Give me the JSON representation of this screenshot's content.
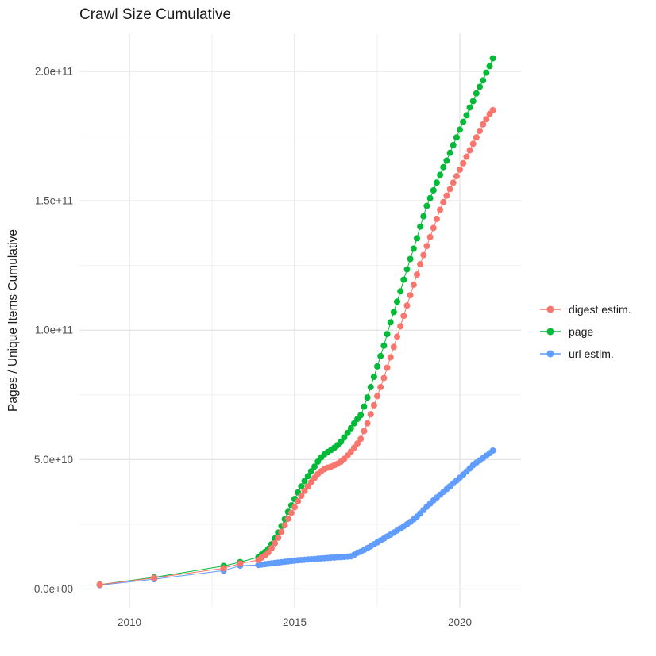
{
  "chart_data": {
    "type": "scatter",
    "title": "Crawl Size Cumulative",
    "xlabel": "",
    "ylabel": "Pages / Unique Items Cumulative",
    "values_unit": "1e9 (billions of pages / unique items)",
    "grid": "on",
    "legend_position": "right",
    "xlim": [
      2008.485,
      2021.85
    ],
    "ylim_e9": [
      -7.2,
      214.7
    ],
    "x_ticks": {
      "values": [
        2010,
        2015,
        2020
      ],
      "labels": [
        "2010",
        "2015",
        "2020"
      ],
      "minor": [
        2012.5,
        2017.5
      ]
    },
    "y_ticks": {
      "values_e9": [
        0,
        50,
        100,
        150,
        200
      ],
      "labels": [
        "0.0e+00",
        "5.0e+10",
        "1.0e+11",
        "1.5e+11",
        "2.0e+11"
      ],
      "minor_e9": [
        25,
        75,
        125,
        175
      ]
    },
    "x": [
      2009.1,
      2010.75,
      2012.85,
      2013.35,
      2013.9,
      2014.0,
      2014.1,
      2014.2,
      2014.3,
      2014.4,
      2014.5,
      2014.6,
      2014.7,
      2014.8,
      2014.9,
      2015.0,
      2015.1,
      2015.2,
      2015.3,
      2015.4,
      2015.5,
      2015.6,
      2015.7,
      2015.8,
      2015.9,
      2016.0,
      2016.1,
      2016.2,
      2016.3,
      2016.4,
      2016.5,
      2016.6,
      2016.7,
      2016.8,
      2016.9,
      2017.0,
      2017.1,
      2017.2,
      2017.3,
      2017.4,
      2017.5,
      2017.6,
      2017.7,
      2017.8,
      2017.9,
      2018.0,
      2018.1,
      2018.2,
      2018.3,
      2018.4,
      2018.5,
      2018.6,
      2018.7,
      2018.8,
      2018.9,
      2019.0,
      2019.1,
      2019.2,
      2019.3,
      2019.4,
      2019.5,
      2019.6,
      2019.7,
      2019.8,
      2019.9,
      2020.0,
      2020.1,
      2020.2,
      2020.3,
      2020.4,
      2020.5,
      2020.6,
      2020.7,
      2020.8,
      2020.9,
      2021.0
    ],
    "series": [
      {
        "name": "digest estim.",
        "color": "#F8766D",
        "values_e9": [
          1.7,
          4.3,
          8.0,
          9.8,
          11.2,
          12.1,
          13.0,
          14.1,
          15.7,
          17.7,
          19.8,
          22.1,
          24.6,
          27.1,
          29.4,
          31.6,
          33.9,
          36.0,
          37.9,
          39.6,
          41.3,
          42.9,
          44.4,
          45.5,
          46.3,
          46.9,
          47.3,
          47.8,
          48.4,
          49.2,
          50.3,
          51.6,
          53.0,
          54.6,
          56.2,
          58.0,
          61.0,
          64.0,
          67.5,
          71.0,
          74.5,
          78.0,
          81.5,
          85.5,
          89.5,
          93.5,
          97.5,
          101.5,
          105.5,
          109.5,
          113.5,
          117.5,
          121.5,
          125.5,
          129.0,
          132.5,
          136.0,
          139.5,
          143.0,
          146.5,
          149.5,
          152.0,
          154.5,
          157.0,
          159.5,
          162.0,
          164.5,
          167.0,
          169.5,
          172.0,
          174.5,
          177.0,
          179.5,
          181.5,
          183.5,
          185.0
        ]
      },
      {
        "name": "page",
        "color": "#00BA38",
        "values_e9": [
          1.7,
          4.5,
          8.9,
          10.4,
          12.3,
          13.3,
          14.3,
          15.5,
          17.3,
          19.5,
          21.8,
          24.3,
          27.0,
          29.8,
          32.3,
          34.8,
          37.3,
          39.6,
          41.7,
          43.6,
          45.5,
          47.3,
          49.2,
          50.8,
          52.0,
          52.9,
          53.7,
          54.6,
          55.6,
          56.9,
          58.5,
          60.3,
          62.1,
          64.0,
          65.7,
          67.2,
          70.5,
          74.0,
          78.0,
          82.0,
          86.0,
          90.0,
          94.0,
          98.5,
          103.0,
          107.0,
          111.0,
          115.0,
          119.5,
          123.5,
          127.5,
          131.5,
          135.5,
          140.0,
          144.0,
          148.0,
          151.0,
          154.0,
          157.0,
          160.0,
          163.0,
          165.5,
          168.5,
          171.5,
          174.5,
          177.5,
          180.5,
          183.0,
          186.0,
          188.5,
          191.5,
          194.0,
          196.5,
          199.5,
          202.0,
          205.0
        ]
      },
      {
        "name": "url estim.",
        "color": "#619CFF",
        "values_e9": [
          1.5,
          3.8,
          7.1,
          9.0,
          9.3,
          9.45,
          9.6,
          9.75,
          9.9,
          10.05,
          10.2,
          10.35,
          10.5,
          10.65,
          10.8,
          10.95,
          11.1,
          11.2,
          11.3,
          11.4,
          11.5,
          11.6,
          11.7,
          11.8,
          11.9,
          12.0,
          12.1,
          12.15,
          12.25,
          12.3,
          12.4,
          12.5,
          12.6,
          13.2,
          14.0,
          14.4,
          15.1,
          15.8,
          16.5,
          17.3,
          18.0,
          18.8,
          19.5,
          20.3,
          21.0,
          21.8,
          22.6,
          23.4,
          24.2,
          25.0,
          25.9,
          26.9,
          28.0,
          29.2,
          30.5,
          31.8,
          33.0,
          34.2,
          35.3,
          36.4,
          37.5,
          38.6,
          39.7,
          40.8,
          41.9,
          43.0,
          44.2,
          45.4,
          46.6,
          47.8,
          48.8,
          49.7,
          50.6,
          51.5,
          52.5,
          53.5
        ]
      }
    ],
    "style": {
      "grid_major_color": "#E3E3E3",
      "grid_minor_color": "#EFEFEF",
      "tick_label_color": "#4d4d4d",
      "point_radius": 4
    },
    "draw_order": [
      "url estim.",
      "page",
      "digest estim."
    ]
  }
}
